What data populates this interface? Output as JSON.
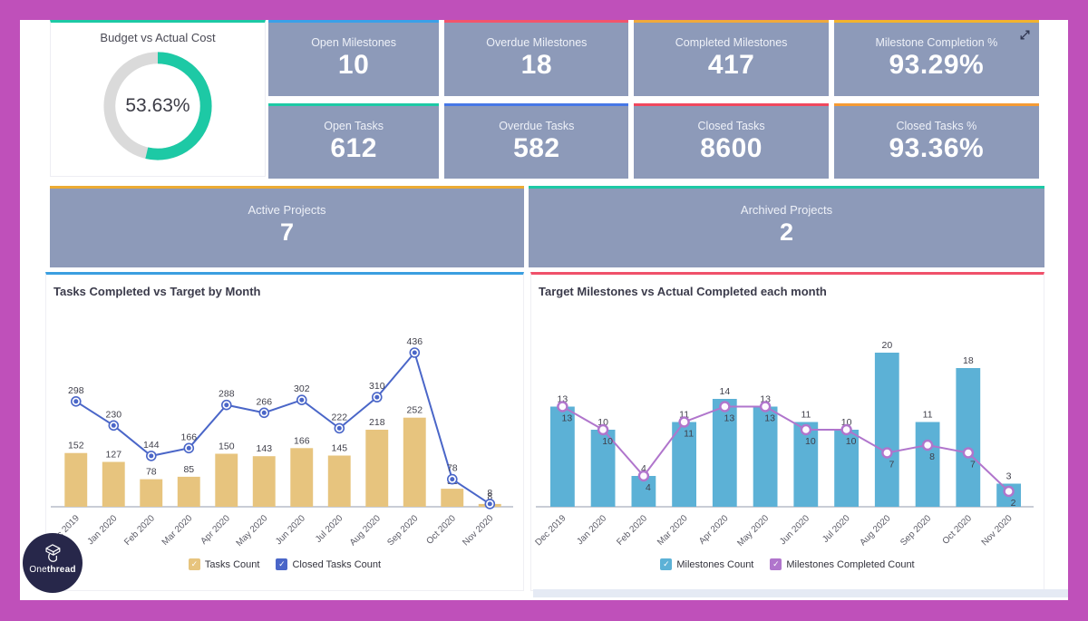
{
  "brand": {
    "logo_text_regular": "One",
    "logo_text_bold": "thread",
    "frame_color": "#bf50ba"
  },
  "gauge": {
    "title": "Budget vs Actual Cost",
    "value": "53.63%",
    "percent": 53.63,
    "color": "#1dc9a5",
    "track_color": "#dadada"
  },
  "kpis": [
    {
      "label": "Open Milestones",
      "value": "10",
      "accent": "#3aa0e8"
    },
    {
      "label": "Overdue Milestones",
      "value": "18",
      "accent": "#f2546c"
    },
    {
      "label": "Completed Milestones",
      "value": "417",
      "accent": "#f0a93c"
    },
    {
      "label": "Milestone Completion %",
      "value": "93.29%",
      "accent": "#f2b32e",
      "expand_icon": true
    },
    {
      "label": "Open Tasks",
      "value": "612",
      "accent": "#1dc9a5"
    },
    {
      "label": "Overdue Tasks",
      "value": "582",
      "accent": "#4677e6"
    },
    {
      "label": "Closed Tasks",
      "value": "8600",
      "accent": "#f0485e"
    },
    {
      "label": "Closed Tasks %",
      "value": "93.36%",
      "accent": "#f59b35"
    }
  ],
  "projects": [
    {
      "label": "Active Projects",
      "value": "7",
      "accent": "#ecab33"
    },
    {
      "label": "Archived Projects",
      "value": "2",
      "accent": "#1dc9a5"
    }
  ],
  "chart_data": [
    {
      "type": "combo_bar_line",
      "title": "Tasks Completed vs Target by Month",
      "accent": "#3a9fe0",
      "categories": [
        "Dec 2019",
        "Jan 2020",
        "Feb 2020",
        "Mar 2020",
        "Apr 2020",
        "May 2020",
        "Jun 2020",
        "Jul 2020",
        "Aug 2020",
        "Sep 2020",
        "Oct 2020",
        "Nov 2020"
      ],
      "series": [
        {
          "name": "Tasks Count",
          "type": "bar",
          "color": "#e7c47e",
          "values": [
            152,
            127,
            78,
            85,
            150,
            143,
            166,
            145,
            218,
            252,
            51,
            8
          ]
        },
        {
          "name": "Closed Tasks Count",
          "type": "line",
          "color": "#4a66c8",
          "values": [
            298,
            230,
            144,
            166,
            288,
            266,
            302,
            222,
            310,
            436,
            78,
            8
          ],
          "label_position": "above",
          "marker_center": true
        }
      ],
      "ylim": [
        0,
        460
      ],
      "grid": false,
      "legend_position": "bottom",
      "value_labels": true
    },
    {
      "type": "combo_bar_line",
      "title": "Target Milestones vs Actual Completed each month",
      "accent": "#f0506a",
      "categories": [
        "Dec 2019",
        "Jan 2020",
        "Feb 2020",
        "Mar 2020",
        "Apr 2020",
        "May 2020",
        "Jun 2020",
        "Jul 2020",
        "Aug 2020",
        "Sep 2020",
        "Oct 2020",
        "Nov 2020"
      ],
      "series": [
        {
          "name": "Milestones Count",
          "type": "bar",
          "color": "#5cb1d6",
          "values": [
            13,
            10,
            4,
            11,
            14,
            13,
            11,
            10,
            20,
            11,
            18,
            3
          ]
        },
        {
          "name": "Milestones Completed Count",
          "type": "line",
          "color": "#b075cc",
          "values": [
            13,
            10,
            4,
            11,
            13,
            13,
            10,
            10,
            7,
            8,
            7,
            2
          ],
          "label_position": "below",
          "marker_center": false
        }
      ],
      "ylim": [
        0,
        22
      ],
      "grid": false,
      "legend_position": "bottom",
      "value_labels": true
    }
  ]
}
